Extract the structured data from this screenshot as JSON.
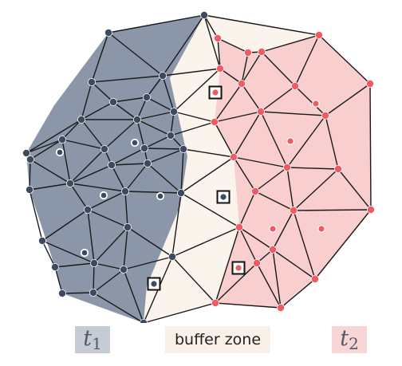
{
  "colors": {
    "region_t1": "#8b97a8",
    "region_buffer": "#fbf4ec",
    "region_t2": "#f9cece",
    "edge": "#1a1a1a",
    "node_t1": "#3b4a5e",
    "node_t2": "#ef5a63",
    "sample_t1": "#3b4a5e",
    "sample_t2": "#ef5a63"
  },
  "legend": {
    "t1_symbol": "t",
    "t1_subscript": "1",
    "buffer_label": "buffer zone",
    "t2_symbol": "t",
    "t2_subscript": "2"
  }
}
